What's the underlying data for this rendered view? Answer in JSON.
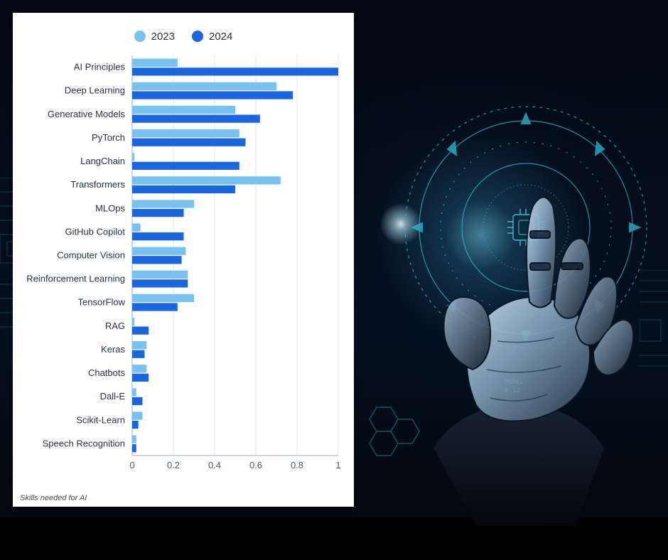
{
  "background": {
    "base_color": "#050c18",
    "glow_center": [
      0.72,
      0.42
    ],
    "glow_color": "#5fd8ff",
    "hud_stroke": "#2fb9cf",
    "hud_fill": "#0a2a3c"
  },
  "chart": {
    "type": "grouped-horizontal-bar",
    "caption": "Skills needed for AI",
    "legend": {
      "items": [
        {
          "label": "2023",
          "color": "#79c1f1"
        },
        {
          "label": "2024",
          "color": "#1a66e0"
        }
      ],
      "fontsize": 15
    },
    "x_axis": {
      "min": 0,
      "max": 1,
      "ticks": [
        0,
        0.2,
        0.4,
        0.6,
        0.8,
        1
      ],
      "tick_fontsize": 13,
      "tick_color": "#4a5a78",
      "gridline_color": "#e3e7ef",
      "axis_line_color": "#bfc7d6"
    },
    "y_axis": {
      "label_fontsize": 13,
      "label_color": "#26324a",
      "label_align": "right"
    },
    "bars": {
      "group_gap_ratio": 0.28,
      "bar_gap_ratio": 0.04
    },
    "background_color": "#ffffff",
    "categories": [
      {
        "label": "AI Principles",
        "v2023": 0.22,
        "v2024": 1.0
      },
      {
        "label": "Deep Learning",
        "v2023": 0.7,
        "v2024": 0.78
      },
      {
        "label": "Generative Models",
        "v2023": 0.5,
        "v2024": 0.62
      },
      {
        "label": "PyTorch",
        "v2023": 0.52,
        "v2024": 0.55
      },
      {
        "label": "LangChain",
        "v2023": 0.01,
        "v2024": 0.52
      },
      {
        "label": "Transformers",
        "v2023": 0.72,
        "v2024": 0.5
      },
      {
        "label": "MLOps",
        "v2023": 0.3,
        "v2024": 0.25
      },
      {
        "label": "GitHub Copilot",
        "v2023": 0.04,
        "v2024": 0.25
      },
      {
        "label": "Computer Vision",
        "v2023": 0.26,
        "v2024": 0.24
      },
      {
        "label": "Reinforcement Learning",
        "v2023": 0.27,
        "v2024": 0.27
      },
      {
        "label": "TensorFlow",
        "v2023": 0.3,
        "v2024": 0.22
      },
      {
        "label": "RAG",
        "v2023": 0.01,
        "v2024": 0.08
      },
      {
        "label": "Keras",
        "v2023": 0.07,
        "v2024": 0.06
      },
      {
        "label": "Chatbots",
        "v2023": 0.07,
        "v2024": 0.08
      },
      {
        "label": "Dall-E",
        "v2023": 0.02,
        "v2024": 0.05
      },
      {
        "label": "Scikit-Learn",
        "v2023": 0.05,
        "v2024": 0.03
      },
      {
        "label": "Speech Recognition",
        "v2023": 0.02,
        "v2024": 0.02
      }
    ]
  }
}
